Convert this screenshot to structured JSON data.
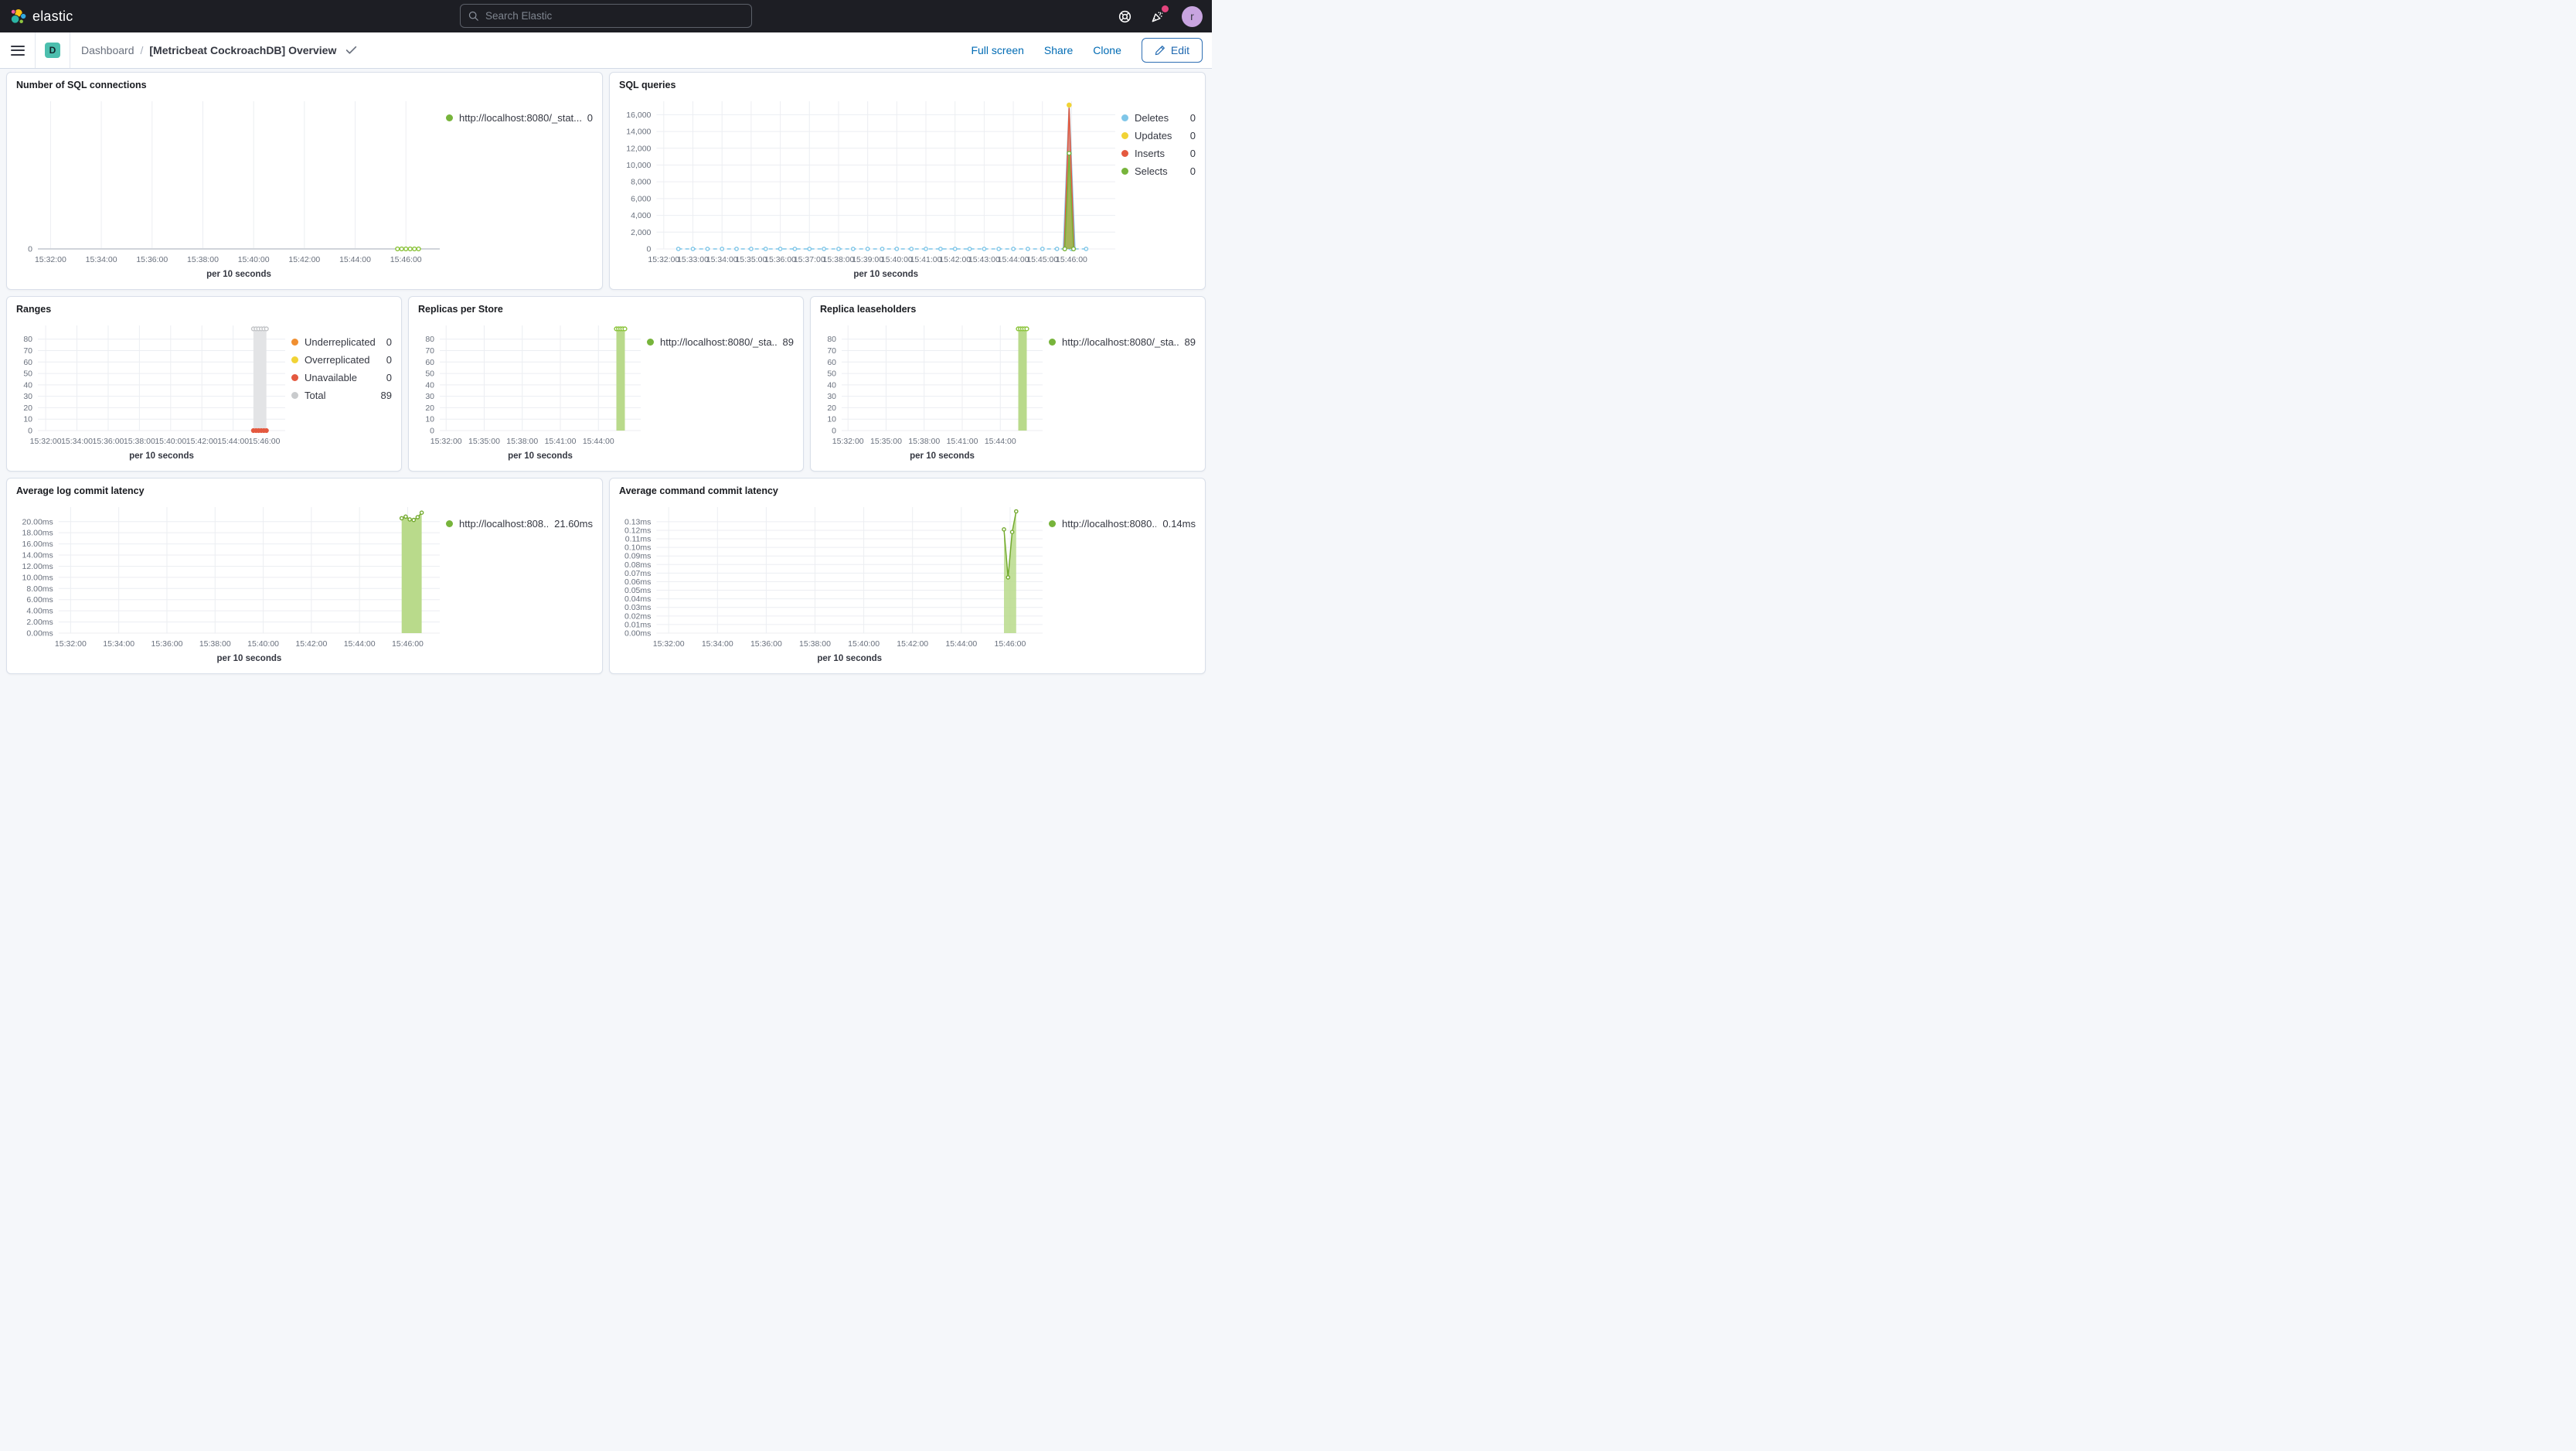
{
  "header": {
    "logo_text": "elastic",
    "search_placeholder": "Search Elastic",
    "avatar_initial": "r",
    "colors": {
      "header_bg": "#1d1e24",
      "notification_dot": "#e3447d",
      "avatar_bg": "#c8a4e0"
    }
  },
  "nav": {
    "app_badge": "D",
    "breadcrumb_root": "Dashboard",
    "breadcrumb_sep": "/",
    "title": "[Metricbeat CockroachDB] Overview",
    "actions": {
      "full_screen": "Full screen",
      "share": "Share",
      "clone": "Clone",
      "edit": "Edit"
    },
    "colors": {
      "link": "#006bb4",
      "badge_bg": "#4cbfae"
    }
  },
  "chart_data": [
    {
      "title": "Number of SQL connections",
      "type": "line",
      "xlabel": "per 10 seconds",
      "zero_strong": true,
      "x_domain": [
        55890,
        56840
      ],
      "x_ticks": [
        [
          55920,
          "15:32:00"
        ],
        [
          56040,
          "15:34:00"
        ],
        [
          56160,
          "15:36:00"
        ],
        [
          56280,
          "15:38:00"
        ],
        [
          56400,
          "15:40:00"
        ],
        [
          56520,
          "15:42:00"
        ],
        [
          56640,
          "15:44:00"
        ],
        [
          56760,
          "15:46:00"
        ]
      ],
      "y_ticks": [
        {
          "v": 0,
          "label": "0"
        }
      ],
      "y_min": 0,
      "y_max": 1,
      "series": [
        {
          "name": "http://localhost:8080/_stat...",
          "type": "line",
          "color": "#8ac339",
          "markers": true,
          "points": [
            [
              56740,
              0
            ],
            [
              56750,
              0
            ],
            [
              56760,
              0
            ],
            [
              56770,
              0
            ],
            [
              56780,
              0
            ],
            [
              56790,
              0
            ]
          ]
        }
      ],
      "legend": {
        "items": [
          {
            "label": "http://localhost:8080/_stat...",
            "value": "0",
            "color": "#77b43b"
          }
        ]
      }
    },
    {
      "title": "SQL queries",
      "type": "area",
      "xlabel": "per 10 seconds",
      "x_domain": [
        55905,
        56850
      ],
      "x_ticks": [
        [
          55920,
          "15:32:00"
        ],
        [
          55980,
          "15:33:00"
        ],
        [
          56040,
          "15:34:00"
        ],
        [
          56100,
          "15:35:00"
        ],
        [
          56160,
          "15:36:00"
        ],
        [
          56220,
          "15:37:00"
        ],
        [
          56280,
          "15:38:00"
        ],
        [
          56340,
          "15:39:00"
        ],
        [
          56400,
          "15:40:00"
        ],
        [
          56460,
          "15:41:00"
        ],
        [
          56520,
          "15:42:00"
        ],
        [
          56580,
          "15:43:00"
        ],
        [
          56640,
          "15:44:00"
        ],
        [
          56700,
          "15:45:00"
        ],
        [
          56760,
          "15:46:00"
        ]
      ],
      "y_ticks": [
        {
          "v": 0,
          "label": "0"
        },
        {
          "v": 2000,
          "label": "2,000"
        },
        {
          "v": 4000,
          "label": "4,000"
        },
        {
          "v": 6000,
          "label": "6,000"
        },
        {
          "v": 8000,
          "label": "8,000"
        },
        {
          "v": 10000,
          "label": "10,000"
        },
        {
          "v": 12000,
          "label": "12,000"
        },
        {
          "v": 14000,
          "label": "14,000"
        },
        {
          "v": 16000,
          "label": "16,000"
        }
      ],
      "y_min": 0,
      "y_max": 17600,
      "series": [
        {
          "name": "Deletes",
          "type": "line",
          "color": "#7fc6e8",
          "dashed": true,
          "markers": true,
          "marker_r": 2.2,
          "points": [
            [
              55950,
              0
            ],
            [
              55980,
              0
            ],
            [
              56010,
              0
            ],
            [
              56040,
              0
            ],
            [
              56070,
              0
            ],
            [
              56100,
              0
            ],
            [
              56130,
              0
            ],
            [
              56160,
              0
            ],
            [
              56190,
              0
            ],
            [
              56220,
              0
            ],
            [
              56250,
              0
            ],
            [
              56280,
              0
            ],
            [
              56310,
              0
            ],
            [
              56340,
              0
            ],
            [
              56370,
              0
            ],
            [
              56400,
              0
            ],
            [
              56430,
              0
            ],
            [
              56460,
              0
            ],
            [
              56490,
              0
            ],
            [
              56520,
              0
            ],
            [
              56550,
              0
            ],
            [
              56580,
              0
            ],
            [
              56610,
              0
            ],
            [
              56640,
              0
            ],
            [
              56670,
              0
            ],
            [
              56700,
              0
            ],
            [
              56730,
              0
            ],
            [
              56760,
              0
            ],
            [
              56790,
              0
            ]
          ]
        },
        {
          "name": "Deletes spike",
          "type": "area",
          "color": "#7fc6e8",
          "fill": "#7fc6e8",
          "fill_opacity": 0.45,
          "points": [
            [
              56743,
              0
            ],
            [
              56755,
              17200
            ],
            [
              56767,
              0
            ]
          ]
        },
        {
          "name": "Inserts spike",
          "type": "area",
          "color": "#e4593f",
          "fill": "#e4593f",
          "fill_opacity": 0.55,
          "points": [
            [
              56745,
              0
            ],
            [
              56755,
              16800
            ],
            [
              56765,
              0
            ]
          ]
        },
        {
          "name": "Selects spike",
          "type": "area",
          "color": "#77b43b",
          "fill": "#8ac339",
          "fill_opacity": 0.65,
          "markers": true,
          "points": [
            [
              56746,
              0
            ],
            [
              56755,
              11400
            ],
            [
              56764,
              0
            ]
          ]
        },
        {
          "name": "Updates peak",
          "type": "scatter",
          "color": "#f1d335",
          "marker_fill": true,
          "marker_r": 2.6,
          "points": [
            [
              56755,
              17150
            ]
          ]
        }
      ],
      "legend": {
        "items": [
          {
            "label": "Deletes",
            "value": "0",
            "color": "#7fc6e8"
          },
          {
            "label": "Updates",
            "value": "0",
            "color": "#f1d335"
          },
          {
            "label": "Inserts",
            "value": "0",
            "color": "#e4593f"
          },
          {
            "label": "Selects",
            "value": "0",
            "color": "#77b43b"
          }
        ]
      }
    },
    {
      "title": "Ranges",
      "type": "area",
      "xlabel": "per 10 seconds",
      "x_domain": [
        55890,
        56840
      ],
      "x_ticks": [
        [
          55920,
          "15:32:00"
        ],
        [
          56040,
          "15:34:00"
        ],
        [
          56160,
          "15:36:00"
        ],
        [
          56280,
          "15:38:00"
        ],
        [
          56400,
          "15:40:00"
        ],
        [
          56520,
          "15:42:00"
        ],
        [
          56640,
          "15:44:00"
        ],
        [
          56760,
          "15:46:00"
        ]
      ],
      "y_ticks": [
        {
          "v": 0,
          "label": "0"
        },
        {
          "v": 10,
          "label": "10"
        },
        {
          "v": 20,
          "label": "20"
        },
        {
          "v": 30,
          "label": "30"
        },
        {
          "v": 40,
          "label": "40"
        },
        {
          "v": 50,
          "label": "50"
        },
        {
          "v": 60,
          "label": "60"
        },
        {
          "v": 70,
          "label": "70"
        },
        {
          "v": 80,
          "label": "80"
        }
      ],
      "y_min": 0,
      "y_max": 92,
      "series": [
        {
          "name": "Total",
          "type": "area",
          "color": "#c3c5c8",
          "fill": "#e3e4e6",
          "fill_opacity": 1,
          "markers": true,
          "points": [
            [
              56718,
              89
            ],
            [
              56728,
              89
            ],
            [
              56738,
              89
            ],
            [
              56748,
              89
            ],
            [
              56758,
              89
            ],
            [
              56768,
              89
            ]
          ]
        },
        {
          "name": "Unavailable",
          "type": "scatter",
          "color": "#e4593f",
          "marker_fill": true,
          "marker_r": 2.4,
          "points": [
            [
              56718,
              0
            ],
            [
              56728,
              0
            ],
            [
              56738,
              0
            ],
            [
              56748,
              0
            ],
            [
              56758,
              0
            ],
            [
              56768,
              0
            ]
          ]
        }
      ],
      "legend": {
        "items": [
          {
            "label": "Underreplicated",
            "value": "0",
            "color": "#f08f30"
          },
          {
            "label": "Overreplicated",
            "value": "0",
            "color": "#f1d335"
          },
          {
            "label": "Unavailable",
            "value": "0",
            "color": "#e4593f"
          },
          {
            "label": "Total",
            "value": "89",
            "color": "#c9cbcd"
          }
        ]
      }
    },
    {
      "title": "Replicas per Store",
      "type": "area",
      "xlabel": "per 10 seconds",
      "x_domain": [
        55890,
        56840
      ],
      "x_ticks": [
        [
          55920,
          "15:32:00"
        ],
        [
          56100,
          "15:35:00"
        ],
        [
          56280,
          "15:38:00"
        ],
        [
          56460,
          "15:41:00"
        ],
        [
          56640,
          "15:44:00"
        ]
      ],
      "y_ticks": [
        {
          "v": 0,
          "label": "0"
        },
        {
          "v": 10,
          "label": "10"
        },
        {
          "v": 20,
          "label": "20"
        },
        {
          "v": 30,
          "label": "30"
        },
        {
          "v": 40,
          "label": "40"
        },
        {
          "v": 50,
          "label": "50"
        },
        {
          "v": 60,
          "label": "60"
        },
        {
          "v": 70,
          "label": "70"
        },
        {
          "v": 80,
          "label": "80"
        }
      ],
      "y_min": 0,
      "y_max": 92,
      "series": [
        {
          "name": "http://localhost:8080/_sta...",
          "type": "area",
          "color": "#8ac339",
          "fill": "#b9da8b",
          "fill_opacity": 1,
          "markers": true,
          "points": [
            [
              56725,
              89
            ],
            [
              56735,
              89
            ],
            [
              56745,
              89
            ],
            [
              56755,
              89
            ],
            [
              56765,
              89
            ]
          ]
        }
      ],
      "legend": {
        "items": [
          {
            "label": "http://localhost:8080/_sta...",
            "value": "89",
            "color": "#77b43b"
          }
        ]
      }
    },
    {
      "title": "Replica leaseholders",
      "type": "area",
      "xlabel": "per 10 seconds",
      "x_domain": [
        55890,
        56840
      ],
      "x_ticks": [
        [
          55920,
          "15:32:00"
        ],
        [
          56100,
          "15:35:00"
        ],
        [
          56280,
          "15:38:00"
        ],
        [
          56460,
          "15:41:00"
        ],
        [
          56640,
          "15:44:00"
        ]
      ],
      "y_ticks": [
        {
          "v": 0,
          "label": "0"
        },
        {
          "v": 10,
          "label": "10"
        },
        {
          "v": 20,
          "label": "20"
        },
        {
          "v": 30,
          "label": "30"
        },
        {
          "v": 40,
          "label": "40"
        },
        {
          "v": 50,
          "label": "50"
        },
        {
          "v": 60,
          "label": "60"
        },
        {
          "v": 70,
          "label": "70"
        },
        {
          "v": 80,
          "label": "80"
        }
      ],
      "y_min": 0,
      "y_max": 92,
      "series": [
        {
          "name": "http://localhost:8080/_sta...",
          "type": "area",
          "color": "#8ac339",
          "fill": "#b9da8b",
          "fill_opacity": 1,
          "markers": true,
          "points": [
            [
              56725,
              89
            ],
            [
              56735,
              89
            ],
            [
              56745,
              89
            ],
            [
              56755,
              89
            ],
            [
              56765,
              89
            ]
          ]
        }
      ],
      "legend": {
        "items": [
          {
            "label": "http://localhost:8080/_sta...",
            "value": "89",
            "color": "#77b43b"
          }
        ]
      }
    },
    {
      "title": "Average log commit latency",
      "type": "area",
      "xlabel": "per 10 seconds",
      "x_domain": [
        55890,
        56840
      ],
      "x_ticks": [
        [
          55920,
          "15:32:00"
        ],
        [
          56040,
          "15:34:00"
        ],
        [
          56160,
          "15:36:00"
        ],
        [
          56280,
          "15:38:00"
        ],
        [
          56400,
          "15:40:00"
        ],
        [
          56520,
          "15:42:00"
        ],
        [
          56640,
          "15:44:00"
        ],
        [
          56760,
          "15:46:00"
        ]
      ],
      "y_ticks": [
        {
          "v": 0,
          "label": "0.00ms"
        },
        {
          "v": 2,
          "label": "2.00ms"
        },
        {
          "v": 4,
          "label": "4.00ms"
        },
        {
          "v": 6,
          "label": "6.00ms"
        },
        {
          "v": 8,
          "label": "8.00ms"
        },
        {
          "v": 10,
          "label": "10.00ms"
        },
        {
          "v": 12,
          "label": "12.00ms"
        },
        {
          "v": 14,
          "label": "14.00ms"
        },
        {
          "v": 16,
          "label": "16.00ms"
        },
        {
          "v": 18,
          "label": "18.00ms"
        },
        {
          "v": 20,
          "label": "20.00ms"
        }
      ],
      "y_min": 0,
      "y_max": 22.6,
      "series": [
        {
          "name": "http://localhost:808...",
          "type": "area",
          "color": "#74aa30",
          "fill": "#b9da8b",
          "fill_opacity": 1,
          "markers": true,
          "marker_r": 2.1,
          "points": [
            [
              56745,
              20.6
            ],
            [
              56755,
              20.9
            ],
            [
              56765,
              20.4
            ],
            [
              56775,
              20.3
            ],
            [
              56785,
              20.8
            ],
            [
              56795,
              21.6
            ]
          ]
        }
      ],
      "legend": {
        "items": [
          {
            "label": "http://localhost:808...",
            "value": "21.60ms",
            "color": "#77b43b"
          }
        ]
      }
    },
    {
      "title": "Average command commit latency",
      "type": "area",
      "xlabel": "per 10 seconds",
      "x_domain": [
        55890,
        56840
      ],
      "x_ticks": [
        [
          55920,
          "15:32:00"
        ],
        [
          56040,
          "15:34:00"
        ],
        [
          56160,
          "15:36:00"
        ],
        [
          56280,
          "15:38:00"
        ],
        [
          56400,
          "15:40:00"
        ],
        [
          56520,
          "15:42:00"
        ],
        [
          56640,
          "15:44:00"
        ],
        [
          56760,
          "15:46:00"
        ]
      ],
      "y_ticks": [
        {
          "v": 0,
          "label": "0.00ms"
        },
        {
          "v": 0.01,
          "label": "0.01ms"
        },
        {
          "v": 0.02,
          "label": "0.02ms"
        },
        {
          "v": 0.03,
          "label": "0.03ms"
        },
        {
          "v": 0.04,
          "label": "0.04ms"
        },
        {
          "v": 0.05,
          "label": "0.05ms"
        },
        {
          "v": 0.06,
          "label": "0.06ms"
        },
        {
          "v": 0.07,
          "label": "0.07ms"
        },
        {
          "v": 0.08,
          "label": "0.08ms"
        },
        {
          "v": 0.09,
          "label": "0.09ms"
        },
        {
          "v": 0.1,
          "label": "0.10ms"
        },
        {
          "v": 0.11,
          "label": "0.11ms"
        },
        {
          "v": 0.12,
          "label": "0.12ms"
        },
        {
          "v": 0.13,
          "label": "0.13ms"
        }
      ],
      "y_min": 0,
      "y_max": 0.147,
      "series": [
        {
          "name": "http://localhost:8080...",
          "type": "area",
          "color": "#74aa30",
          "fill": "#b9da8b",
          "fill_opacity": 0.85,
          "markers": true,
          "marker_r": 2.1,
          "points": [
            [
              56745,
              0.121
            ],
            [
              56755,
              0.065
            ],
            [
              56765,
              0.118
            ],
            [
              56775,
              0.142
            ]
          ]
        }
      ],
      "legend": {
        "items": [
          {
            "label": "http://localhost:8080...",
            "value": "0.14ms",
            "color": "#77b43b"
          }
        ]
      }
    }
  ]
}
